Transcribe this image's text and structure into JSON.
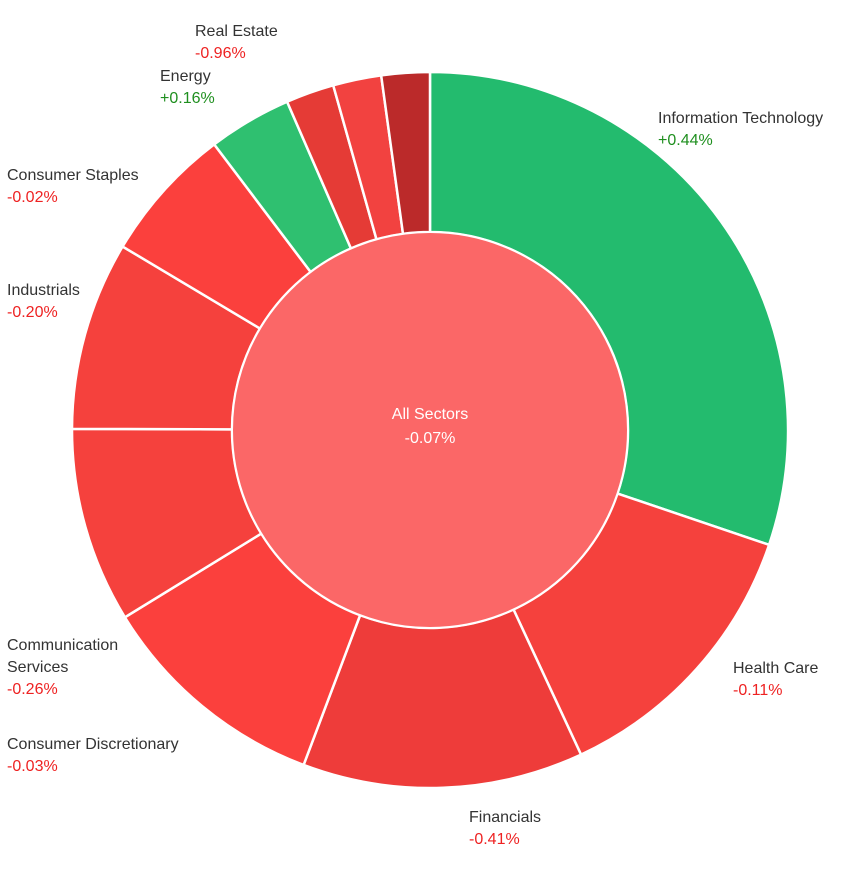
{
  "colors": {
    "positive": "#23bb6e",
    "negative": "#f5413d",
    "center": "#fb6767",
    "positive_text": "#1f8f1f",
    "negative_text": "#ee2222"
  },
  "chart_data": {
    "type": "pie",
    "variant": "sunburst",
    "center": {
      "label": "All Sectors",
      "change": "-0.07%"
    },
    "sectors": [
      {
        "name": "Information Technology",
        "change": "+0.44%",
        "weight": 30.5,
        "color": "#23bb6e"
      },
      {
        "name": "Health Care",
        "change": "-0.11%",
        "weight": 13.0,
        "color": "#f5413d"
      },
      {
        "name": "Financials",
        "change": "-0.41%",
        "weight": 12.8,
        "color": "#ee3c3a"
      },
      {
        "name": "Consumer Discretionary",
        "change": "-0.03%",
        "weight": 10.6,
        "color": "#fb403d"
      },
      {
        "name": "Communication Services",
        "change": "-0.26%",
        "weight": 8.9,
        "color": "#f5413d"
      },
      {
        "name": "Industrials",
        "change": "-0.20%",
        "weight": 8.6,
        "color": "#f5413d"
      },
      {
        "name": "Consumer Staples",
        "change": "-0.02%",
        "weight": 6.2,
        "color": "#fb403d"
      },
      {
        "name": "Energy",
        "change": "+0.16%",
        "weight": 3.8,
        "color": "#2fc070"
      },
      {
        "name": "",
        "change": "",
        "weight": 2.2,
        "color": "#e53b36"
      },
      {
        "name": "",
        "change": "",
        "weight": 2.2,
        "color": "#f24240"
      },
      {
        "name": "Real Estate",
        "change": "-0.96%",
        "weight": 2.2,
        "color": "#bb2a2a"
      }
    ]
  },
  "labels": [
    {
      "name": "Information Technology",
      "change": "+0.44%"
    },
    {
      "name": "Health Care",
      "change": "-0.11%"
    },
    {
      "name": "Financials",
      "change": "-0.41%"
    },
    {
      "name": "Consumer Discretionary",
      "change": "-0.03%"
    },
    {
      "name": "Communication\nServices",
      "change": "-0.26%"
    },
    {
      "name": "Industrials",
      "change": "-0.20%"
    },
    {
      "name": "Consumer Staples",
      "change": "-0.02%"
    },
    {
      "name": "Energy",
      "change": "+0.16%"
    },
    {
      "name": "Real Estate",
      "change": "-0.96%"
    }
  ]
}
